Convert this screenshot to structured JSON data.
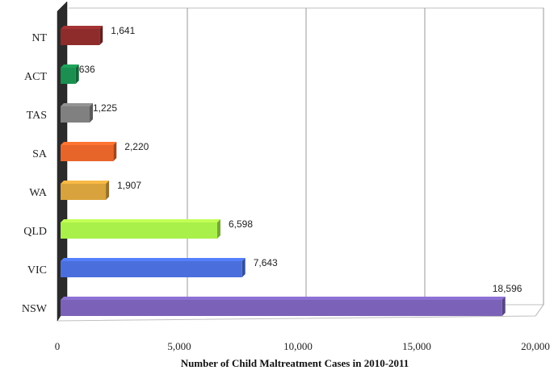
{
  "chart_data": {
    "type": "bar",
    "orientation": "horizontal",
    "title": "",
    "xlabel": "Number of Child Maltreatment Cases in 2010-2011",
    "ylabel": "",
    "xlim": [
      0,
      20000
    ],
    "xticks": [
      "0",
      "5,000",
      "10,000",
      "15,000",
      "20,000"
    ],
    "xtick_values": [
      0,
      5000,
      10000,
      15000,
      20000
    ],
    "grid": true,
    "legend": "none",
    "categories": [
      "NT",
      "ACT",
      "TAS",
      "SA",
      "WA",
      "QLD",
      "VIC",
      "NSW"
    ],
    "values": [
      1641,
      636,
      1225,
      2220,
      1907,
      6598,
      7643,
      18596
    ],
    "value_labels": [
      "1,641",
      "636",
      "1,225",
      "2,220",
      "1,907",
      "6,598",
      "7,643",
      "18,596"
    ],
    "colors": [
      "#8e2c2c",
      "#1a8f4f",
      "#808080",
      "#e8652a",
      "#d8a23c",
      "#a9f04a",
      "#4a6fdc",
      "#7b62b8"
    ]
  }
}
